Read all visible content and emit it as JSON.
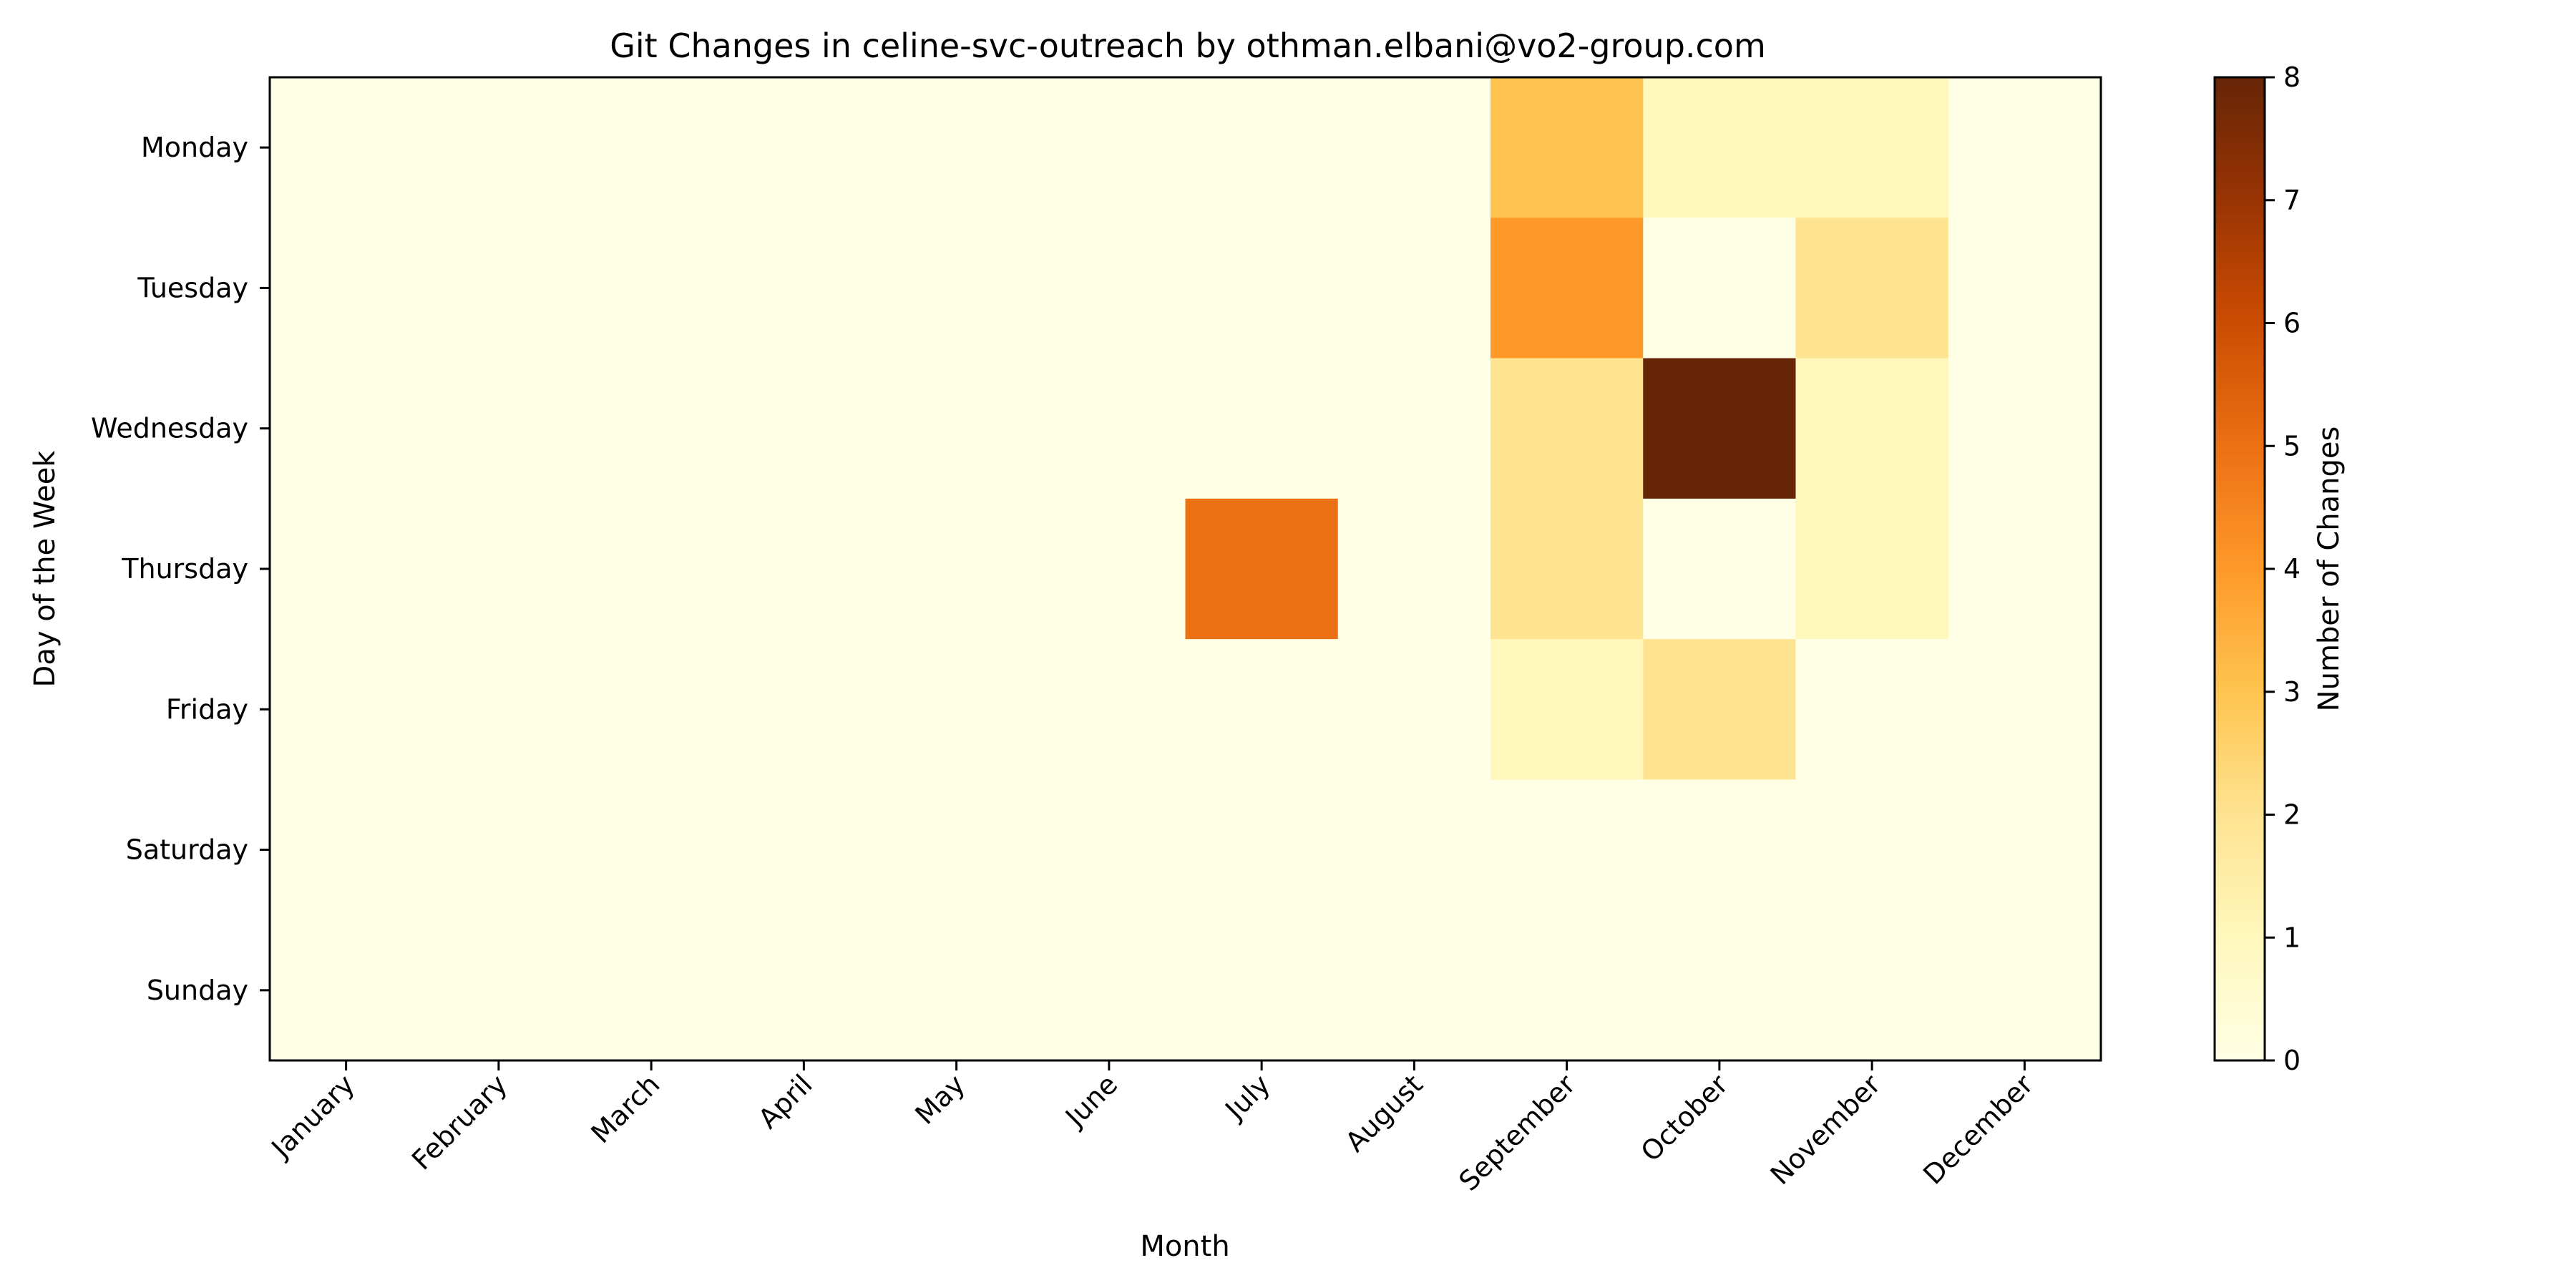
{
  "chart_data": {
    "type": "heatmap",
    "title": "Git Changes in celine-svc-outreach by othman.elbani@vo2-group.com",
    "xlabel": "Month",
    "ylabel": "Day of the Week",
    "x_categories": [
      "January",
      "February",
      "March",
      "April",
      "May",
      "June",
      "July",
      "August",
      "September",
      "October",
      "November",
      "December"
    ],
    "y_categories": [
      "Monday",
      "Tuesday",
      "Wednesday",
      "Thursday",
      "Friday",
      "Saturday",
      "Sunday"
    ],
    "values": [
      [
        0,
        0,
        0,
        0,
        0,
        0,
        0,
        0,
        3,
        1,
        1,
        0
      ],
      [
        0,
        0,
        0,
        0,
        0,
        0,
        0,
        0,
        4,
        0,
        2,
        0
      ],
      [
        0,
        0,
        0,
        0,
        0,
        0,
        0,
        0,
        2,
        8,
        1,
        0
      ],
      [
        0,
        0,
        0,
        0,
        0,
        0,
        5,
        0,
        2,
        0,
        1,
        0
      ],
      [
        0,
        0,
        0,
        0,
        0,
        0,
        0,
        0,
        1,
        2,
        0,
        0
      ],
      [
        0,
        0,
        0,
        0,
        0,
        0,
        0,
        0,
        0,
        0,
        0,
        0
      ],
      [
        0,
        0,
        0,
        0,
        0,
        0,
        0,
        0,
        0,
        0,
        0,
        0
      ]
    ],
    "colorbar": {
      "label": "Number of Changes",
      "range": [
        0,
        8
      ],
      "ticks": [
        "0",
        "1",
        "2",
        "3",
        "4",
        "5",
        "6",
        "7",
        "8"
      ],
      "colormap": "YlOrBr"
    },
    "grid": false
  }
}
